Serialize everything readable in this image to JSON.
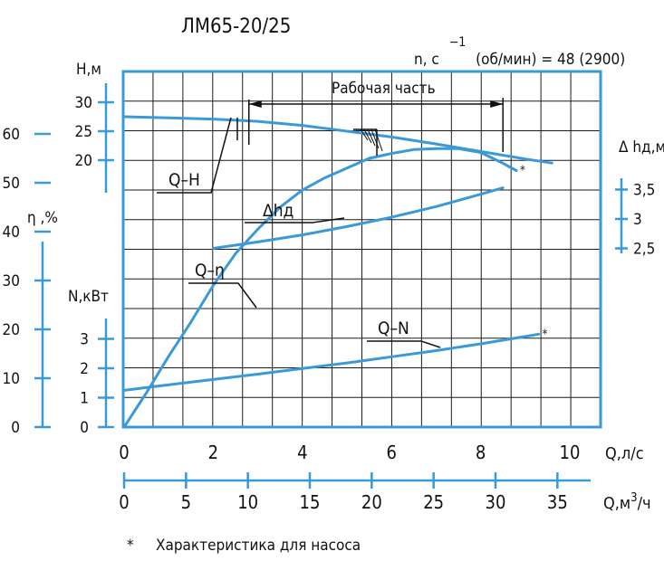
{
  "title": "ЛМ65-20/25",
  "speed_label": "n, c",
  "speed_exp": "−1",
  "speed_value": "(об/мин) = 48 (2900)",
  "working_range_label": "Рабочая часть",
  "footnote_mark": "*",
  "footnote_text": "Характеристика для насоса",
  "colors": {
    "frame": "#3a9ad9",
    "curve": "#3a9ad9",
    "grid": "#1a1a1a",
    "text": "#111111"
  },
  "chart_data": {
    "type": "line",
    "x_axis": {
      "label": "Q,л/с",
      "range": [
        0,
        10.5
      ],
      "ticks": [
        "0",
        "2",
        "4",
        "6",
        "8",
        "10"
      ]
    },
    "x2_axis": {
      "label": "Q,м³/ч",
      "unit_main": "Q,м",
      "unit_exp": "3",
      "unit_tail": "/ч",
      "ticks": [
        "0",
        "5",
        "10",
        "15",
        "20",
        "25",
        "30",
        "35"
      ]
    },
    "y_axes": {
      "H": {
        "label": "Н,м",
        "ticks": [
          "30",
          "25",
          "20"
        ]
      },
      "eta": {
        "label": "η ,%",
        "ticks": [
          "60",
          "50",
          "40",
          "30",
          "20",
          "10",
          "0"
        ]
      },
      "N": {
        "label": "N,кВт",
        "ticks": [
          "3",
          "2",
          "1",
          "0"
        ]
      },
      "NPSH": {
        "label": "Δ hд,м",
        "ticks": [
          "3,5",
          "3",
          "2,5"
        ]
      }
    },
    "working_range_q": [
      2.8,
      8.5
    ],
    "series": [
      {
        "name": "Q–H",
        "unit": "м",
        "x": [
          0,
          1,
          2,
          3,
          4,
          5,
          6,
          7,
          8,
          9,
          9.6
        ],
        "values": [
          27.5,
          27.3,
          27.1,
          26.7,
          26.0,
          25.0,
          24.0,
          22.8,
          21.5,
          20.2,
          19.5
        ]
      },
      {
        "name": "Δhд",
        "unit": "м",
        "x": [
          2,
          3,
          4,
          5,
          6,
          7,
          8,
          8.5
        ],
        "values": [
          2.5,
          2.61,
          2.73,
          2.87,
          3.03,
          3.21,
          3.42,
          3.53
        ]
      },
      {
        "name": "Q–η",
        "unit": "%",
        "x": [
          0,
          0.5,
          1,
          1.5,
          2,
          2.5,
          3,
          3.5,
          4,
          4.5,
          5,
          5.5,
          6,
          6.5,
          7,
          7.5,
          8,
          8.5,
          8.8
        ],
        "values": [
          0,
          7,
          14.5,
          21.5,
          29,
          35.5,
          40.5,
          45,
          48.5,
          51,
          53,
          55,
          56,
          56.8,
          57,
          57,
          56.2,
          54,
          52.5
        ],
        "footnote": "*"
      },
      {
        "name": "Q–N",
        "unit": "кВт",
        "x": [
          0,
          1,
          2,
          3,
          4,
          5,
          6,
          7,
          8,
          9,
          9.3
        ],
        "values": [
          1.25,
          1.44,
          1.62,
          1.8,
          1.99,
          2.18,
          2.39,
          2.6,
          2.83,
          3.08,
          3.16
        ],
        "footnote": "*"
      }
    ]
  }
}
